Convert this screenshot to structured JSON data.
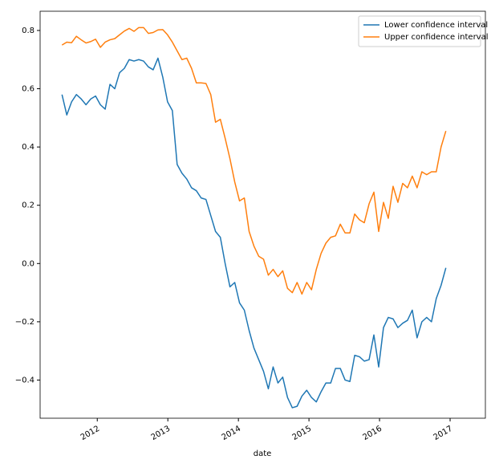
{
  "chart_data": {
    "type": "line",
    "xlabel": "date",
    "x": [
      2011.5,
      2011.568,
      2011.636,
      2011.704,
      2011.772,
      2011.84,
      2011.908,
      2011.976,
      2012.044,
      2012.112,
      2012.18,
      2012.248,
      2012.316,
      2012.384,
      2012.452,
      2012.52,
      2012.588,
      2012.656,
      2012.724,
      2012.792,
      2012.86,
      2012.928,
      2012.996,
      2013.064,
      2013.132,
      2013.2,
      2013.268,
      2013.336,
      2013.404,
      2013.472,
      2013.54,
      2013.608,
      2013.676,
      2013.744,
      2013.812,
      2013.88,
      2013.948,
      2014.016,
      2014.084,
      2014.152,
      2014.22,
      2014.288,
      2014.356,
      2014.424,
      2014.492,
      2014.56,
      2014.628,
      2014.696,
      2014.764,
      2014.832,
      2014.9,
      2014.968,
      2015.036,
      2015.104,
      2015.172,
      2015.24,
      2015.308,
      2015.376,
      2015.444,
      2015.512,
      2015.58,
      2015.648,
      2015.716,
      2015.784,
      2015.852,
      2015.92,
      2015.988,
      2016.056,
      2016.124,
      2016.192,
      2016.26,
      2016.328,
      2016.396,
      2016.464,
      2016.532,
      2016.6,
      2016.668,
      2016.736,
      2016.804,
      2016.872,
      2016.94
    ],
    "series": [
      {
        "name": "Lower confidence interval",
        "color": "#1f77b4",
        "values": [
          0.58,
          0.51,
          0.555,
          0.58,
          0.565,
          0.545,
          0.565,
          0.575,
          0.545,
          0.53,
          0.615,
          0.6,
          0.655,
          0.67,
          0.7,
          0.695,
          0.7,
          0.695,
          0.675,
          0.665,
          0.705,
          0.64,
          0.555,
          0.525,
          0.34,
          0.31,
          0.29,
          0.26,
          0.25,
          0.225,
          0.22,
          0.165,
          0.11,
          0.09,
          0.0,
          -0.08,
          -0.065,
          -0.135,
          -0.16,
          -0.23,
          -0.29,
          -0.33,
          -0.37,
          -0.43,
          -0.355,
          -0.41,
          -0.39,
          -0.46,
          -0.495,
          -0.49,
          -0.455,
          -0.435,
          -0.46,
          -0.475,
          -0.44,
          -0.41,
          -0.41,
          -0.36,
          -0.36,
          -0.4,
          -0.405,
          -0.315,
          -0.32,
          -0.335,
          -0.33,
          -0.245,
          -0.355,
          -0.22,
          -0.185,
          -0.19,
          -0.22,
          -0.205,
          -0.195,
          -0.16,
          -0.255,
          -0.2,
          -0.185,
          -0.2,
          -0.12,
          -0.075,
          -0.015
        ]
      },
      {
        "name": "Upper confidence interval",
        "color": "#ff7f0e",
        "values": [
          0.75,
          0.76,
          0.758,
          0.78,
          0.768,
          0.757,
          0.762,
          0.77,
          0.742,
          0.76,
          0.768,
          0.772,
          0.785,
          0.798,
          0.807,
          0.797,
          0.81,
          0.81,
          0.79,
          0.793,
          0.802,
          0.803,
          0.785,
          0.76,
          0.73,
          0.7,
          0.705,
          0.67,
          0.62,
          0.62,
          0.618,
          0.58,
          0.485,
          0.495,
          0.43,
          0.36,
          0.28,
          0.215,
          0.225,
          0.11,
          0.06,
          0.025,
          0.015,
          -0.04,
          -0.02,
          -0.045,
          -0.025,
          -0.085,
          -0.1,
          -0.065,
          -0.105,
          -0.065,
          -0.09,
          -0.02,
          0.035,
          0.07,
          0.09,
          0.095,
          0.135,
          0.105,
          0.105,
          0.17,
          0.15,
          0.14,
          0.205,
          0.245,
          0.11,
          0.21,
          0.155,
          0.265,
          0.21,
          0.275,
          0.26,
          0.3,
          0.26,
          0.315,
          0.305,
          0.315,
          0.315,
          0.4,
          0.455
        ]
      }
    ],
    "xlim": [
      2011.19,
      2017.5
    ],
    "xticks": [
      2012,
      2013,
      2014,
      2015,
      2016,
      2017
    ],
    "ylim": [
      -0.531,
      0.866
    ],
    "yticks": [
      {
        "value": -0.4,
        "label": "−0.4"
      },
      {
        "value": -0.2,
        "label": "−0.2"
      },
      {
        "value": 0,
        "label": "0.0"
      },
      {
        "value": 0.2,
        "label": "0.2"
      },
      {
        "value": 0.4,
        "label": "0.4"
      },
      {
        "value": 0.6,
        "label": "0.6"
      },
      {
        "value": 0.8,
        "label": "0.8"
      }
    ],
    "grid": false,
    "legend": "upper right"
  }
}
